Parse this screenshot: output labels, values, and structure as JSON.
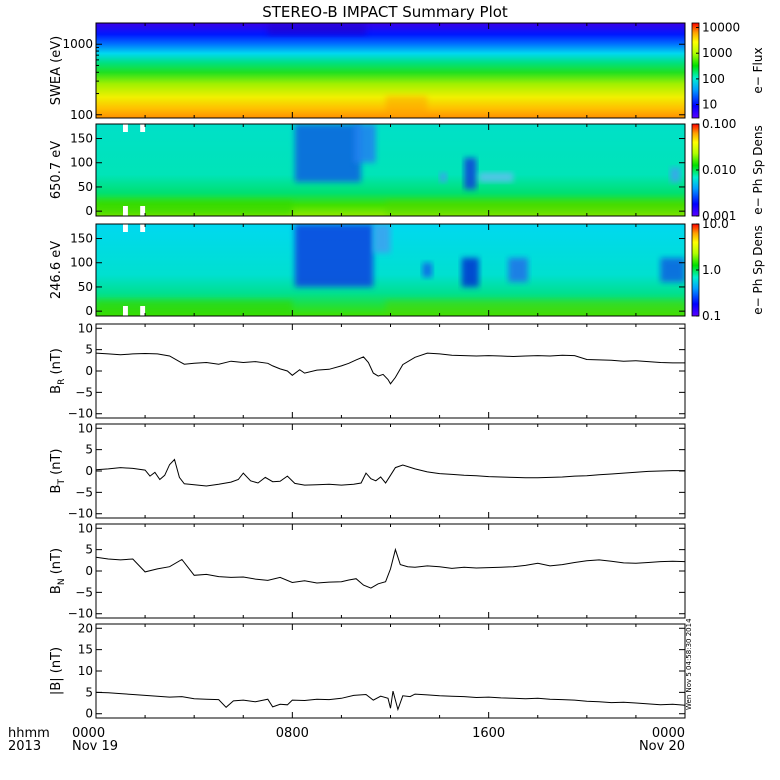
{
  "title": "STEREO-B IMPACT Summary Plot",
  "stamp": "Wen Nov 5 04:58:30 2014",
  "time_axis": {
    "corner_top": "hhmm",
    "corner_bottom": "2013",
    "ticks": [
      {
        "t": 0,
        "top": "0000",
        "bottom": "Nov 19"
      },
      {
        "t": 8,
        "top": "0800",
        "bottom": ""
      },
      {
        "t": 16,
        "top": "1600",
        "bottom": ""
      },
      {
        "t": 24,
        "top": "0000",
        "bottom": "Nov 20"
      }
    ]
  },
  "chart_data": [
    {
      "id": "swea",
      "type": "heatmap",
      "ylabel": "SWEA (eV)",
      "ylog": true,
      "ylim": [
        90,
        2000
      ],
      "yticks": [
        {
          "v": 100,
          "label": "100"
        },
        {
          "v": 1000,
          "label": "1000"
        }
      ],
      "colorbar": {
        "label": "e− Flux",
        "log": true,
        "range": [
          3,
          15000
        ],
        "ticks": [
          {
            "v": 10,
            "label": "10"
          },
          {
            "v": 100,
            "label": "100"
          },
          {
            "v": 1000,
            "label": "1000"
          },
          {
            "v": 10000,
            "label": "10000"
          }
        ]
      }
    },
    {
      "id": "pad650",
      "type": "heatmap",
      "ylabel": "650.7 eV",
      "ylim": [
        -10,
        180
      ],
      "yticks": [
        {
          "v": 0,
          "label": "0"
        },
        {
          "v": 50,
          "label": "50"
        },
        {
          "v": 100,
          "label": "100"
        },
        {
          "v": 150,
          "label": "150"
        }
      ],
      "colorbar": {
        "label": "e− Ph Sp Dens",
        "log": true,
        "range": [
          0.001,
          0.1
        ],
        "ticks": [
          {
            "v": 0.001,
            "label": "0.001"
          },
          {
            "v": 0.01,
            "label": "0.010"
          },
          {
            "v": 0.1,
            "label": "0.100"
          }
        ]
      }
    },
    {
      "id": "pad246",
      "type": "heatmap",
      "ylabel": "246.6 eV",
      "ylim": [
        -10,
        180
      ],
      "yticks": [
        {
          "v": 0,
          "label": "0"
        },
        {
          "v": 50,
          "label": "50"
        },
        {
          "v": 100,
          "label": "100"
        },
        {
          "v": 150,
          "label": "150"
        }
      ],
      "colorbar": {
        "label": "e− Ph Sp Dens",
        "log": true,
        "range": [
          0.1,
          10
        ],
        "ticks": [
          {
            "v": 0.1,
            "label": "0.1"
          },
          {
            "v": 1,
            "label": "1.0"
          },
          {
            "v": 10,
            "label": "10.0"
          }
        ]
      }
    },
    {
      "id": "br",
      "type": "line",
      "ylabel": "B",
      "ysub": "R",
      "yunit": " (nT)",
      "ylim": [
        -11,
        11
      ],
      "yticks": [
        {
          "v": -10,
          "label": "−10"
        },
        {
          "v": -5,
          "label": "−5"
        },
        {
          "v": 0,
          "label": "0"
        },
        {
          "v": 5,
          "label": "5"
        },
        {
          "v": 10,
          "label": "10"
        }
      ],
      "x": [
        0,
        0.5,
        1,
        1.5,
        2,
        2.5,
        3,
        3.4,
        3.6,
        4,
        4.5,
        5,
        5.5,
        6,
        6.5,
        7,
        7.2,
        7.5,
        7.8,
        8,
        8.3,
        8.5,
        9,
        9.5,
        10,
        10.3,
        10.6,
        10.9,
        11.1,
        11.3,
        11.5,
        11.7,
        11.9,
        12,
        12.2,
        12.5,
        13,
        13.5,
        14,
        14.5,
        15,
        15.5,
        16,
        16.5,
        17,
        17.5,
        18,
        18.5,
        19,
        19.5,
        20,
        20.5,
        21,
        21.5,
        22,
        22.5,
        23,
        23.5,
        24
      ],
      "y": [
        4.2,
        4,
        3.8,
        4,
        4.1,
        4,
        3.5,
        2.2,
        1.6,
        1.8,
        2,
        1.6,
        2.3,
        2,
        2.2,
        1.8,
        1.2,
        0.5,
        0,
        -1,
        0.3,
        -0.5,
        0.2,
        0.4,
        1.2,
        1.8,
        2.6,
        3.3,
        2,
        -0.5,
        -1.2,
        -0.8,
        -2,
        -3,
        -1.5,
        1.5,
        3.2,
        4.2,
        4,
        3.7,
        3.6,
        3.5,
        3.6,
        3.5,
        3.4,
        3.5,
        3.6,
        3.5,
        3.7,
        3.6,
        2.7,
        2.6,
        2.5,
        2.3,
        2.4,
        2.2,
        2,
        1.9,
        1.9
      ]
    },
    {
      "id": "bt",
      "type": "line",
      "ylabel": "B",
      "ysub": "T",
      "yunit": " (nT)",
      "ylim": [
        -11,
        11
      ],
      "yticks": [
        {
          "v": -10,
          "label": "−10"
        },
        {
          "v": -5,
          "label": "−5"
        },
        {
          "v": 0,
          "label": "0"
        },
        {
          "v": 5,
          "label": "5"
        },
        {
          "v": 10,
          "label": "10"
        }
      ],
      "x": [
        0,
        0.5,
        1,
        1.5,
        2,
        2.2,
        2.4,
        2.6,
        2.8,
        3,
        3.2,
        3.4,
        3.6,
        3.8,
        4,
        4.5,
        5,
        5.5,
        5.8,
        6,
        6.3,
        6.6,
        6.9,
        7.2,
        7.5,
        7.8,
        8.1,
        8.5,
        9,
        9.5,
        10,
        10.5,
        10.8,
        11,
        11.2,
        11.4,
        11.6,
        11.8,
        12,
        12.2,
        12.5,
        13,
        13.5,
        14,
        14.5,
        15,
        15.5,
        16,
        16.5,
        17,
        17.5,
        18,
        18.5,
        19,
        19.5,
        20,
        20.5,
        21,
        21.5,
        22,
        22.5,
        23,
        23.5,
        24
      ],
      "y": [
        0.3,
        0.5,
        0.8,
        0.6,
        0.2,
        -1.2,
        -0.3,
        -2,
        -1,
        1.5,
        2.7,
        -1.5,
        -3,
        -3.1,
        -3.2,
        -3.5,
        -3.1,
        -2.6,
        -2,
        -0.5,
        -2.3,
        -2.8,
        -1.5,
        -2.5,
        -2.4,
        -1.2,
        -2.9,
        -3.3,
        -3.2,
        -3.1,
        -3.3,
        -3.1,
        -2.8,
        -0.5,
        -1.8,
        -2.3,
        -1.4,
        -2.8,
        -1,
        0.8,
        1.4,
        0.5,
        -0.2,
        -0.6,
        -0.8,
        -1,
        -1.1,
        -1.3,
        -1.4,
        -1.5,
        -1.6,
        -1.6,
        -1.5,
        -1.4,
        -1.2,
        -1.1,
        -0.9,
        -0.7,
        -0.5,
        -0.3,
        -0.1,
        0,
        0.1,
        0.1
      ]
    },
    {
      "id": "bn",
      "type": "line",
      "ylabel": "B",
      "ysub": "N",
      "yunit": " (nT)",
      "ylim": [
        -11,
        11
      ],
      "yticks": [
        {
          "v": -10,
          "label": "−10"
        },
        {
          "v": -5,
          "label": "−5"
        },
        {
          "v": 0,
          "label": "0"
        },
        {
          "v": 5,
          "label": "5"
        },
        {
          "v": 10,
          "label": "10"
        }
      ],
      "x": [
        0,
        0.5,
        1,
        1.5,
        2,
        2.5,
        3,
        3.5,
        4,
        4.5,
        5,
        5.5,
        6,
        6.5,
        7,
        7.5,
        8,
        8.5,
        9,
        9.5,
        10,
        10.3,
        10.6,
        10.9,
        11.2,
        11.5,
        11.8,
        12,
        12.2,
        12.4,
        12.7,
        13,
        13.5,
        14,
        14.5,
        15,
        15.5,
        16,
        16.5,
        17,
        17.5,
        18,
        18.5,
        19,
        19.5,
        20,
        20.5,
        21,
        21.5,
        22,
        22.5,
        23,
        23.5,
        24
      ],
      "y": [
        3.2,
        2.8,
        2.6,
        2.8,
        -0.2,
        0.5,
        1,
        2.7,
        -1,
        -0.8,
        -1.3,
        -1.5,
        -1.4,
        -1.9,
        -2.2,
        -1.5,
        -2.7,
        -2.3,
        -2.8,
        -2.6,
        -2.5,
        -2.1,
        -1.8,
        -3.3,
        -4,
        -3,
        -2.5,
        0.5,
        5,
        1.5,
        1,
        0.9,
        1.2,
        1,
        0.6,
        0.9,
        0.7,
        0.8,
        0.9,
        1,
        1.3,
        1.8,
        1.2,
        1.5,
        2,
        2.4,
        2.6,
        2.3,
        1.9,
        1.8,
        2,
        2.2,
        2.3,
        2.2
      ]
    },
    {
      "id": "bmag",
      "type": "line",
      "ylabel": "|B| (nT)",
      "ylim": [
        -1,
        21
      ],
      "yticks": [
        {
          "v": 0,
          "label": "0"
        },
        {
          "v": 5,
          "label": "5"
        },
        {
          "v": 10,
          "label": "10"
        },
        {
          "v": 15,
          "label": "15"
        },
        {
          "v": 20,
          "label": "20"
        }
      ],
      "x": [
        0,
        0.5,
        1,
        1.5,
        2,
        2.5,
        3,
        3.5,
        4,
        4.5,
        5,
        5.3,
        5.6,
        6,
        6.5,
        7,
        7.2,
        7.5,
        7.8,
        8,
        8.5,
        9,
        9.5,
        10,
        10.5,
        11,
        11.3,
        11.6,
        11.9,
        12,
        12.1,
        12.3,
        12.5,
        12.8,
        13,
        13.5,
        14,
        14.5,
        15,
        15.5,
        16,
        16.5,
        17,
        17.5,
        18,
        18.5,
        19,
        19.5,
        20,
        20.5,
        21,
        21.5,
        22,
        22.5,
        23,
        23.5,
        24
      ],
      "y": [
        5,
        4.9,
        4.7,
        4.5,
        4.3,
        4.1,
        3.9,
        4,
        3.5,
        3.4,
        3.3,
        1.5,
        3,
        3.2,
        2.8,
        3.4,
        1.6,
        2.2,
        2.1,
        3.2,
        3.1,
        3.4,
        3.3,
        3.6,
        4.3,
        4.5,
        3.2,
        4.1,
        3.6,
        1.3,
        5.3,
        1,
        4.2,
        4,
        4.6,
        4.4,
        4.2,
        4.1,
        4,
        3.8,
        3.9,
        3.7,
        3.6,
        3.5,
        3.6,
        3.4,
        3.3,
        3.2,
        2.9,
        2.8,
        2.6,
        2.7,
        2.5,
        2.3,
        2.1,
        2.2,
        2
      ]
    }
  ]
}
